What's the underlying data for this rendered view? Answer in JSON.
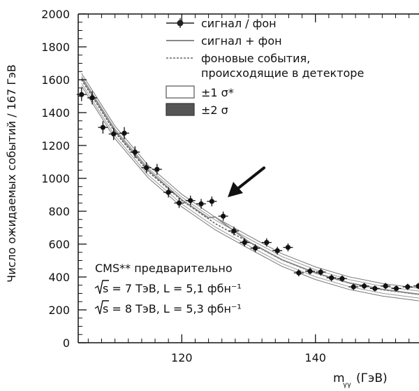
{
  "chart_data": {
    "type": "scatter",
    "ylabel": "Число ожидаемых событий / 167 ГэВ",
    "xlabel_main": "m",
    "xlabel_sub": "γγ",
    "xlabel_unit": "(ГэВ)",
    "xlim": [
      104.5,
      155.5
    ],
    "ylim": [
      0,
      2000
    ],
    "x_ticks": [
      120,
      140
    ],
    "y_ticks": [
      0,
      200,
      400,
      600,
      800,
      1000,
      1200,
      1400,
      1600,
      1800,
      2000
    ],
    "legend": {
      "position": "top-right",
      "entries": [
        {
          "label": "сигнал / фон",
          "style": "marker-line"
        },
        {
          "label": "сигнал + фон",
          "style": "solid-line"
        },
        {
          "label": "фоновые события,",
          "style": "dashed-line"
        },
        {
          "label": "происходящие в детекторе",
          "style": "continuation"
        },
        {
          "label": "±1 σ*",
          "style": "band-light"
        },
        {
          "label": "±2 σ",
          "style": "band-dark"
        }
      ]
    },
    "annotations": [
      "CMS** предварительно",
      "s = 7 ТэВ, L = 5,1 фбн⁻¹",
      "s = 8 ТэВ, L = 5,3 фбн⁻¹"
    ],
    "series": [
      {
        "name": "сигнал / фон",
        "x": [
          105,
          106.6,
          108.2,
          109.8,
          111.4,
          113,
          114.7,
          116.3,
          118,
          119.6,
          121.3,
          122.9,
          124.5,
          126.2,
          127.8,
          129.4,
          131,
          132.7,
          134.3,
          135.9,
          137.5,
          139.2,
          140.8,
          142.4,
          144,
          145.7,
          147.3,
          148.9,
          150.5,
          152.1,
          153.8,
          155.4
        ],
        "y": [
          1510,
          1490,
          1310,
          1270,
          1275,
          1160,
          1065,
          1055,
          915,
          850,
          865,
          845,
          860,
          770,
          680,
          610,
          575,
          610,
          560,
          580,
          425,
          435,
          430,
          395,
          390,
          340,
          345,
          330,
          345,
          330,
          340,
          345
        ],
        "yerr": [
          40,
          40,
          38,
          37,
          37,
          35,
          33,
          33,
          31,
          30,
          30,
          30,
          30,
          28,
          26,
          25,
          24,
          25,
          24,
          24,
          21,
          21,
          21,
          20,
          20,
          19,
          19,
          18,
          19,
          18,
          19,
          19
        ]
      },
      {
        "name": "сигнал + фон",
        "x": [
          105,
          110,
          115,
          120,
          124,
          125,
          126,
          127,
          130,
          135,
          140,
          145,
          150,
          155.5
        ],
        "y": [
          1610,
          1290,
          1050,
          870,
          760,
          765,
          735,
          705,
          615,
          505,
          425,
          365,
          325,
          295
        ]
      },
      {
        "name": "фоновые события, происходящие в детекторе",
        "x": [
          105,
          110,
          115,
          120,
          125,
          130,
          135,
          140,
          145,
          150,
          155.5
        ],
        "y": [
          1600,
          1280,
          1040,
          865,
          725,
          612,
          503,
          423,
          363,
          322,
          293
        ]
      }
    ]
  }
}
